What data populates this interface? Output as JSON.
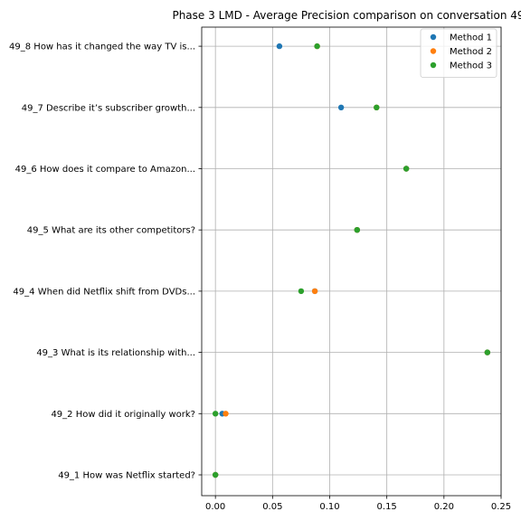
{
  "chart_data": {
    "type": "scatter",
    "title": "Phase 3 LMD - Average Precision comparison on conversation 49",
    "xlabel": "",
    "ylabel": "",
    "xlim": [
      -0.012,
      0.25
    ],
    "x_ticks": [
      0.0,
      0.05,
      0.1,
      0.15,
      0.2,
      0.25
    ],
    "x_tick_labels": [
      "0.00",
      "0.05",
      "0.10",
      "0.15",
      "0.20",
      "0.25"
    ],
    "categories": [
      "49_1 How was Netflix started?",
      "49_2 How did it originally work?",
      "49_3 What is its relationship with...",
      "49_4 When did Netflix shift from DVDs...",
      "49_5 What are its other competitors?",
      "49_6 How does it compare to Amazon...",
      "49_7 Describe it’s subscriber growth...",
      "49_8 How has it changed the way TV is..."
    ],
    "grid": true,
    "legend_position": "top-right",
    "series": [
      {
        "name": "Method 1",
        "color": "#1f77b4",
        "values": [
          0.0,
          0.006,
          0.238,
          0.087,
          0.124,
          0.167,
          0.11,
          0.056
        ]
      },
      {
        "name": "Method 2",
        "color": "#ff7f0e",
        "values": [
          0.0,
          0.009,
          0.238,
          0.087,
          0.124,
          0.167,
          0.141,
          0.089
        ]
      },
      {
        "name": "Method 3",
        "color": "#2ca02c",
        "values": [
          0.0,
          0.0,
          0.238,
          0.075,
          0.124,
          0.167,
          0.141,
          0.089
        ]
      }
    ]
  }
}
